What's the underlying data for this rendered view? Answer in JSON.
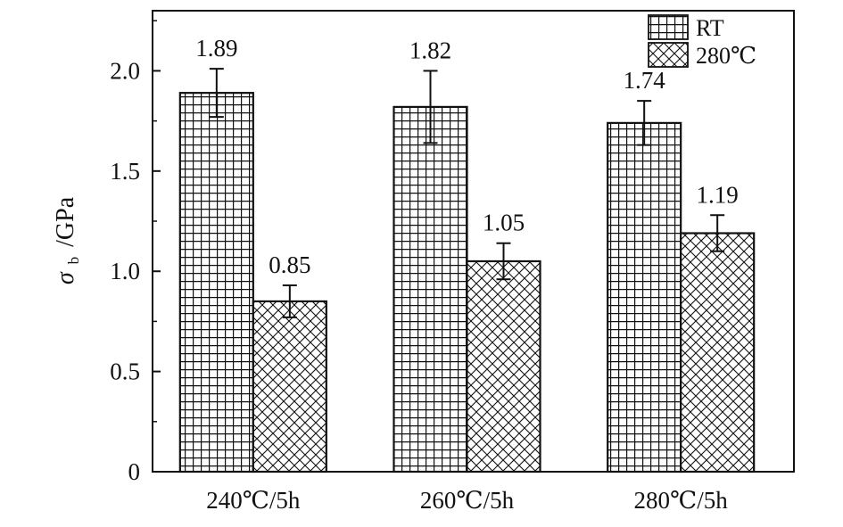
{
  "chart_data": {
    "type": "bar",
    "ylabel": "/GPa",
    "ylabel_symbol": "σ",
    "ylabel_subscript": "b",
    "ylim": [
      0,
      2.3
    ],
    "yticks": [
      0,
      0.5,
      1.0,
      1.5,
      2.0
    ],
    "ytick_labels": [
      "0",
      "0.5",
      "1.0",
      "1.5",
      "2.0"
    ],
    "categories": [
      "240℃/5h",
      "260℃/5h",
      "280℃/5h"
    ],
    "series": [
      {
        "name": "RT",
        "pattern": "grid",
        "values": [
          1.89,
          1.82,
          1.74
        ],
        "labels": [
          "1.89",
          "1.82",
          "1.74"
        ],
        "errors": [
          0.12,
          0.18,
          0.11
        ]
      },
      {
        "name": "280℃",
        "pattern": "crosshatch",
        "values": [
          0.85,
          1.05,
          1.19
        ],
        "labels": [
          "0.85",
          "1.05",
          "1.19"
        ],
        "errors": [
          0.08,
          0.09,
          0.09
        ]
      }
    ],
    "legend_position": "top-right",
    "grid": false,
    "colors": {
      "bar_stroke": "#111111",
      "bar_fill": "#ffffff",
      "axis": "#111111"
    }
  }
}
